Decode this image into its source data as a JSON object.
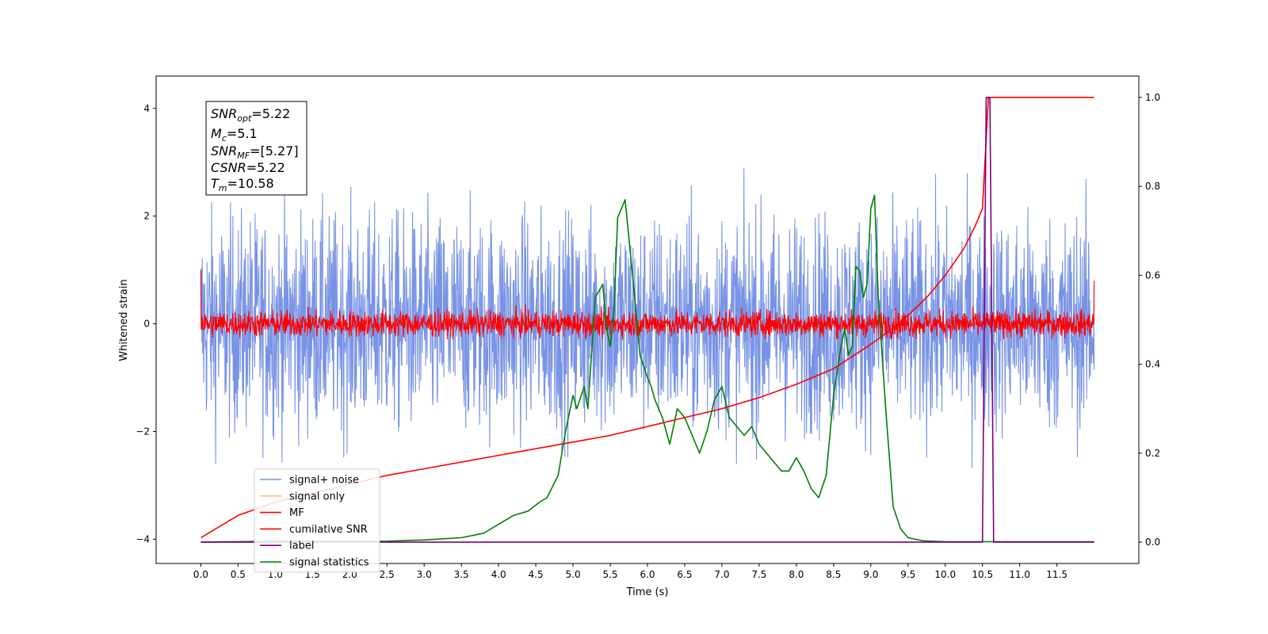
{
  "chart_data": {
    "type": "line",
    "xlabel": "Time (s)",
    "ylabel": "Whitened strain",
    "x_ticks": [
      "0.0",
      "0.5",
      "1.0",
      "1.5",
      "2.0",
      "2.5",
      "3.0",
      "3.5",
      "4.0",
      "4.5",
      "5.0",
      "5.5",
      "6.0",
      "6.5",
      "7.0",
      "7.5",
      "8.0",
      "8.5",
      "9.0",
      "9.5",
      "10.0",
      "10.5",
      "11.0",
      "11.5"
    ],
    "y_ticks": [
      "4",
      "2",
      "0",
      "−2",
      "−4"
    ],
    "y2_ticks": [
      "1.0",
      "0.8",
      "0.6",
      "0.4",
      "0.2",
      "0.0"
    ],
    "xlim": [
      -0.6,
      12.6
    ],
    "ylim": [
      -4.45,
      4.6
    ],
    "y2lim": [
      -0.048,
      1.048
    ],
    "legend_position": "lower-left",
    "legend": [
      {
        "label": "signal+ noise",
        "color": "#7893e6"
      },
      {
        "label": "signal only",
        "color": "#ffc36b"
      },
      {
        "label": "MF",
        "color": "#ff0000"
      },
      {
        "label": "cumilative SNR",
        "color": "#ff0000"
      },
      {
        "label": "label",
        "color": "#800080"
      },
      {
        "label": "signal statistics",
        "color": "#008000"
      }
    ],
    "annotations": {
      "snr_opt": {
        "sym": "SNR",
        "sub": "opt",
        "val": "=5.22"
      },
      "mc": {
        "sym": "M",
        "sub": "c",
        "val": "=5.1"
      },
      "snr_mf": {
        "sym": "SNR",
        "sub": "MF",
        "val": "=[5.27]"
      },
      "csnr": {
        "sym": "CSNR",
        "sub": "",
        "val": "=5.22"
      },
      "tm": {
        "sym": "T",
        "sub": "m",
        "val": "=10.58"
      }
    },
    "series": [
      {
        "name": "cumilative SNR",
        "axis": "right",
        "color": "#ff0000",
        "x": [
          0.0,
          0.5,
          1.0,
          1.5,
          2.0,
          2.5,
          3.0,
          3.5,
          4.0,
          4.5,
          5.0,
          5.5,
          6.0,
          6.5,
          7.0,
          7.5,
          8.0,
          8.5,
          9.0,
          9.25,
          9.5,
          9.75,
          10.0,
          10.25,
          10.4,
          10.5,
          10.58,
          11.0,
          11.5,
          12.0
        ],
        "y": [
          0.01,
          0.06,
          0.09,
          0.11,
          0.13,
          0.15,
          0.165,
          0.18,
          0.195,
          0.21,
          0.225,
          0.24,
          0.26,
          0.28,
          0.3,
          0.325,
          0.355,
          0.39,
          0.445,
          0.475,
          0.51,
          0.55,
          0.6,
          0.66,
          0.71,
          0.75,
          1.0,
          1.0,
          1.0,
          1.0
        ]
      },
      {
        "name": "label",
        "axis": "right",
        "color": "#800080",
        "x": [
          0.0,
          10.5,
          10.55,
          10.6,
          10.65,
          12.0
        ],
        "y": [
          0.0,
          0.0,
          1.0,
          1.0,
          0.0,
          0.0
        ]
      },
      {
        "name": "signal statistics",
        "axis": "right",
        "color": "#008000",
        "x": [
          0.0,
          1.0,
          2.0,
          2.5,
          3.0,
          3.5,
          3.8,
          4.0,
          4.2,
          4.4,
          4.55,
          4.65,
          4.8,
          4.9,
          5.0,
          5.05,
          5.15,
          5.2,
          5.3,
          5.4,
          5.45,
          5.5,
          5.55,
          5.6,
          5.7,
          5.8,
          5.9,
          6.0,
          6.05,
          6.1,
          6.2,
          6.3,
          6.4,
          6.5,
          6.6,
          6.7,
          6.8,
          6.9,
          7.0,
          7.1,
          7.2,
          7.3,
          7.4,
          7.5,
          7.6,
          7.7,
          7.8,
          7.9,
          8.0,
          8.1,
          8.2,
          8.3,
          8.4,
          8.5,
          8.6,
          8.65,
          8.7,
          8.75,
          8.8,
          8.85,
          8.9,
          8.95,
          9.0,
          9.05,
          9.1,
          9.2,
          9.3,
          9.4,
          9.5,
          9.7,
          10.0,
          10.5,
          11.0,
          11.5,
          12.0
        ],
        "y": [
          0.0,
          0.002,
          0.002,
          0.002,
          0.005,
          0.01,
          0.02,
          0.04,
          0.06,
          0.07,
          0.09,
          0.1,
          0.15,
          0.25,
          0.33,
          0.3,
          0.35,
          0.3,
          0.55,
          0.58,
          0.48,
          0.44,
          0.52,
          0.73,
          0.77,
          0.6,
          0.42,
          0.37,
          0.35,
          0.32,
          0.28,
          0.22,
          0.3,
          0.28,
          0.24,
          0.2,
          0.25,
          0.32,
          0.35,
          0.28,
          0.26,
          0.24,
          0.26,
          0.22,
          0.2,
          0.18,
          0.16,
          0.16,
          0.19,
          0.16,
          0.12,
          0.1,
          0.15,
          0.33,
          0.44,
          0.48,
          0.42,
          0.44,
          0.62,
          0.61,
          0.55,
          0.58,
          0.75,
          0.78,
          0.55,
          0.3,
          0.08,
          0.03,
          0.01,
          0.003,
          0.001,
          0.001,
          0.001,
          0.001,
          0.001
        ]
      },
      {
        "name": "signal+ noise",
        "axis": "left",
        "color": "#7893e6",
        "type": "noise",
        "x_range": [
          0.0,
          12.0
        ],
        "amplitude": 1.0
      },
      {
        "name": "MF",
        "axis": "left",
        "color": "#ff0000",
        "type": "noise",
        "x_range": [
          0.0,
          12.0
        ],
        "amplitude": 0.12
      }
    ]
  }
}
